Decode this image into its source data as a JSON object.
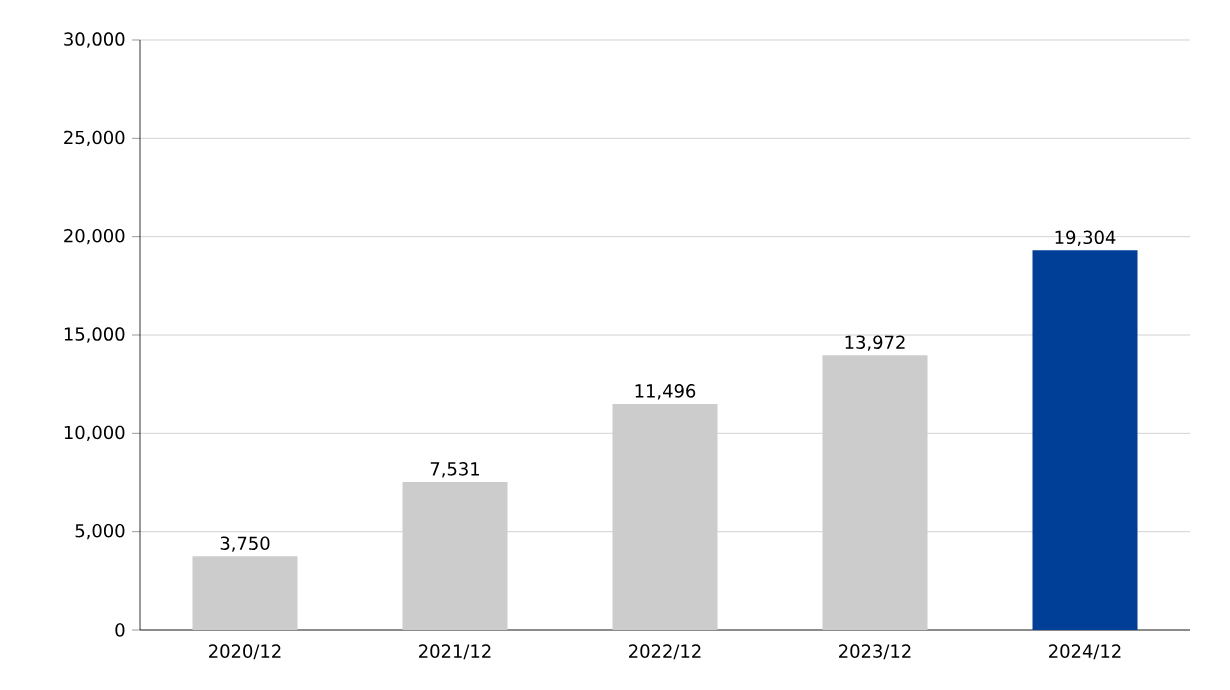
{
  "chart_data": {
    "type": "bar",
    "categories": [
      "2020/12",
      "2021/12",
      "2022/12",
      "2023/12",
      "2024/12"
    ],
    "values": [
      3750,
      7531,
      11496,
      13972,
      19304
    ],
    "colors": [
      "#cccccc",
      "#cccccc",
      "#cccccc",
      "#cccccc",
      "#003f98"
    ],
    "value_labels": [
      "3,750",
      "7,531",
      "11,496",
      "13,972",
      "19,304"
    ],
    "ylim": [
      0,
      30000
    ],
    "yticks": [
      {
        "value": 0,
        "label": "0"
      },
      {
        "value": 5000,
        "label": "5,000"
      },
      {
        "value": 10000,
        "label": "10,000"
      },
      {
        "value": 15000,
        "label": "15,000"
      },
      {
        "value": 20000,
        "label": "20,000"
      },
      {
        "value": 25000,
        "label": "25,000"
      },
      {
        "value": 30000,
        "label": "30,000"
      }
    ],
    "grid": "y"
  }
}
